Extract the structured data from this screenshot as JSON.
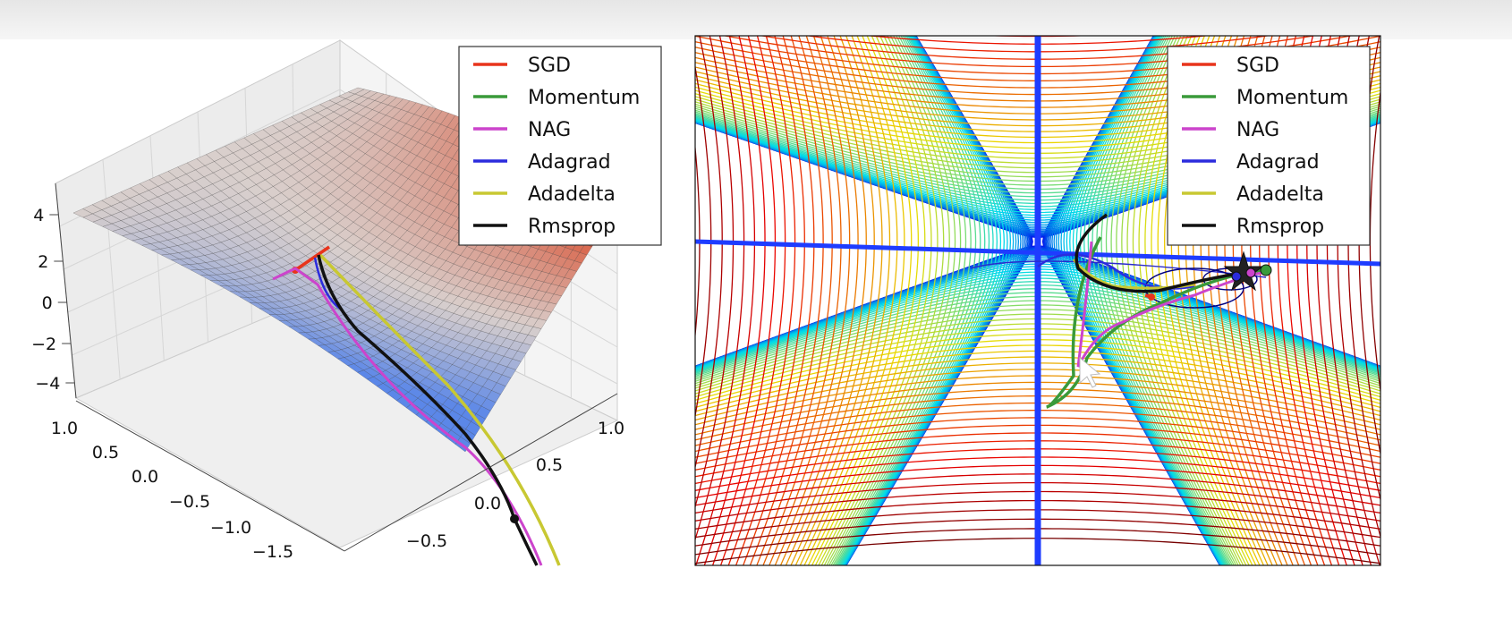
{
  "chart_data": [
    {
      "type": "surface",
      "description_kind": "3d",
      "z_ticks": [
        "4",
        "2",
        "0",
        "−2",
        "−4"
      ],
      "x_ticks": [
        "1.0",
        "0.5",
        "0.0",
        "−0.5",
        "−1.0",
        "−1.5"
      ],
      "y_ticks": [
        "1.0",
        "0.5",
        "0.0",
        "−0.5"
      ],
      "legend": {
        "placement": "top-right",
        "entries": [
          {
            "label": "SGD",
            "color": "#e8341c"
          },
          {
            "label": "Momentum",
            "color": "#3a9a3a"
          },
          {
            "label": "NAG",
            "color": "#cc44cc"
          },
          {
            "label": "Adagrad",
            "color": "#2b2bdd"
          },
          {
            "label": "Adadelta",
            "color": "#c8c832"
          },
          {
            "label": "Rmsprop",
            "color": "#111111"
          }
        ]
      },
      "colors": {
        "high": "#d94a2a",
        "low": "#5b87e8",
        "mid": "#d9cfcc"
      }
    },
    {
      "type": "contour",
      "legend": {
        "placement": "top-right",
        "entries": [
          {
            "label": "SGD",
            "color": "#e8341c"
          },
          {
            "label": "Momentum",
            "color": "#3a9a3a"
          },
          {
            "label": "NAG",
            "color": "#cc44cc"
          },
          {
            "label": "Adagrad",
            "color": "#2b2bdd"
          },
          {
            "label": "Adadelta",
            "color": "#c8c832"
          },
          {
            "label": "Rmsprop",
            "color": "#111111"
          }
        ]
      },
      "colormap": "jet",
      "grid": false
    }
  ]
}
